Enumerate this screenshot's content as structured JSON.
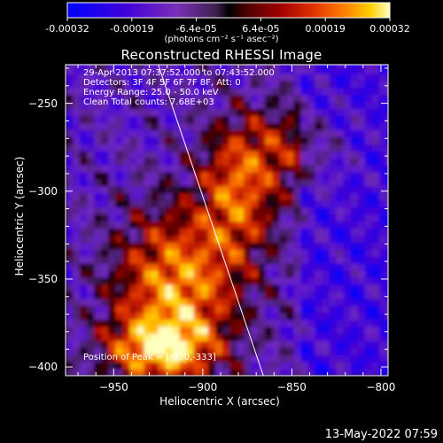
{
  "colorbar": {
    "tick_labels": [
      "-0.00032",
      "-0.00019",
      "-6.4e-05",
      "6.4e-05",
      "0.00019",
      "0.00032"
    ],
    "units": "(photons cm⁻² s⁻¹ asec⁻²)",
    "range": [
      -0.00032,
      0.00032
    ]
  },
  "info": {
    "time_range": "29-Apr-2013 07:37:52.000 to 07:43:52.000",
    "detectors": "Detectors: 3F 4F 5F 6F 7F 8F, Att: 0",
    "energy_range": "Energy Range: 25.0 - 50.0 keV",
    "method_counts": "Clean     Total counts: 7.68E+03",
    "peak": "Position of Peak = [-930,-333]"
  },
  "timestamp": "13-May-2022 07:59",
  "chart_data": {
    "type": "heatmap",
    "title": "Reconstructed RHESSI Image",
    "xlabel": "Heliocentric X (arcsec)",
    "ylabel": "Heliocentric Y (arcsec)",
    "xlim": [
      -977,
      -796
    ],
    "ylim": [
      -405,
      -228
    ],
    "x_ticks": [
      -950,
      -900,
      -850,
      -800
    ],
    "y_ticks": [
      -250,
      -300,
      -350,
      -400
    ],
    "x_tick_labels": [
      "−950",
      "−900",
      "−850",
      "−800"
    ],
    "y_tick_labels": [
      "−250",
      "−300",
      "−350",
      "−400"
    ],
    "limb_line": [
      [
        -925,
        -228
      ],
      [
        -866,
        -405
      ]
    ],
    "peak_position": [
      -930,
      -333
    ],
    "value_range": [
      -0.00032,
      0.00032
    ],
    "colors": {
      "limb": "#ffffff",
      "background": "#000000"
    }
  }
}
